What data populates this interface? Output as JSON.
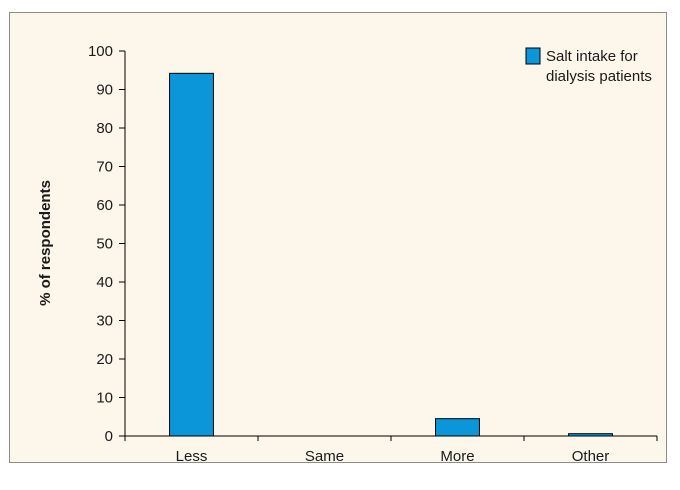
{
  "chart_data": {
    "type": "bar",
    "categories": [
      "Less",
      "Same",
      "More",
      "Other"
    ],
    "series": [
      {
        "name": "Salt intake for dialysis patients",
        "legend_lines": [
          "Salt intake for",
          "dialysis patients"
        ],
        "values": [
          94.2,
          0,
          4.5,
          0.6
        ],
        "color": "#0a96d8"
      }
    ],
    "ylabel": "% of respondents",
    "xlabel": "",
    "ylim": [
      0,
      100
    ],
    "yticks": [
      0,
      10,
      20,
      30,
      40,
      50,
      60,
      70,
      80,
      90,
      100
    ],
    "grid": false,
    "legend_position": "top-right",
    "background_color": "#fdf6ea",
    "bar_edge_color": "#000000"
  }
}
